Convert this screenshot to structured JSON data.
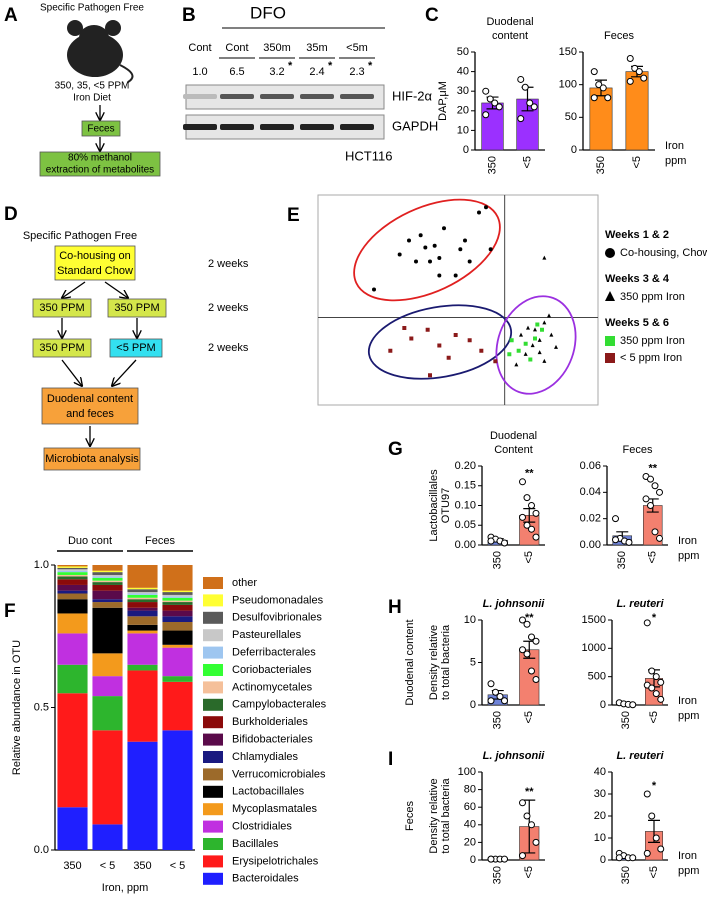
{
  "panel_labels": [
    "A",
    "B",
    "C",
    "D",
    "E",
    "F",
    "G",
    "H",
    "I"
  ],
  "panel_a": {
    "title": "Specific Pathogen Free",
    "diet": [
      "350, 35, <5 PPM",
      "Iron Diet"
    ],
    "step1": "Feces",
    "step2": [
      "80% methanol",
      "extraction of metabolites"
    ]
  },
  "panel_b": {
    "treatment": "DFO",
    "lanes": [
      "Cont",
      "Cont",
      "350m",
      "35m",
      "<5m"
    ],
    "ratios": [
      {
        "value": "1.0"
      },
      {
        "value": "6.5"
      },
      {
        "value": "3.2",
        "mark": "*"
      },
      {
        "value": "2.4",
        "mark": "*"
      },
      {
        "value": "2.3",
        "mark": "*"
      }
    ],
    "bands": [
      "HIF-2α",
      "GAPDH"
    ],
    "cell_line": "HCT116"
  },
  "panel_d": {
    "title": "Specific Pathogen Free",
    "boxes": [
      [
        "Co-housing on",
        "Standard Chow"
      ],
      [
        "350 PPM"
      ],
      [
        "350 PPM"
      ],
      [
        "350 PPM"
      ],
      [
        "<5 PPM"
      ],
      [
        "Duodenal content",
        "and feces"
      ],
      [
        "Microbiota analysis"
      ]
    ],
    "durations": [
      "2 weeks",
      "2 weeks",
      "2 weeks"
    ]
  },
  "chart_data": [
    {
      "type": "bar",
      "title": [
        "Duodenal",
        "content"
      ],
      "y_label": [
        "DAP,μM"
      ],
      "categories": [
        "350",
        "<5"
      ],
      "values": [
        24,
        26
      ],
      "errors": [
        3,
        6
      ],
      "colors": [
        "#9b30ff",
        "#9b30ff"
      ],
      "points": [
        [
          30,
          26,
          24,
          22,
          18
        ],
        [
          36,
          32,
          24,
          22,
          16
        ]
      ],
      "ylim": [
        0,
        50
      ],
      "yticks": [
        0,
        10,
        20,
        30,
        40,
        50
      ]
    },
    {
      "type": "bar",
      "title": [
        "Feces"
      ],
      "x_label": [
        "Iron",
        "ppm"
      ],
      "categories": [
        "350",
        "<5"
      ],
      "values": [
        95,
        120
      ],
      "errors": [
        12,
        8
      ],
      "colors": [
        "#ff8c1a",
        "#ff8c1a"
      ],
      "points": [
        [
          120,
          100,
          95,
          80,
          80
        ],
        [
          140,
          125,
          120,
          110,
          105
        ]
      ],
      "ylim": [
        0,
        150
      ],
      "yticks": [
        0,
        50,
        100,
        150
      ]
    },
    {
      "type": "scatter",
      "xlim": [
        -0.8,
        0.4
      ],
      "ylim": [
        -0.5,
        0.7
      ],
      "series": [
        {
          "name": "Co-housing, Chow",
          "group": "Weeks 1 & 2",
          "marker": "circle",
          "color": "#000000",
          "x": [
            -0.56,
            -0.45,
            -0.41,
            -0.38,
            -0.36,
            -0.34,
            -0.32,
            -0.3,
            -0.28,
            -0.26,
            -0.21,
            -0.19,
            -0.15,
            -0.11,
            -0.08,
            -0.06,
            -0.17,
            -0.28
          ],
          "y": [
            0.16,
            0.36,
            0.44,
            0.32,
            0.47,
            0.4,
            0.32,
            0.41,
            0.34,
            0.51,
            0.24,
            0.39,
            0.32,
            0.6,
            0.63,
            0.39,
            0.44,
            0.24
          ]
        },
        {
          "name": "350 ppm Iron",
          "group": "Weeks 3 & 4",
          "marker": "triangle",
          "color": "#000000",
          "x": [
            0.17,
            0.07,
            0.1,
            0.13,
            0.15,
            0.17,
            0.2,
            0.12,
            0.09,
            0.15,
            0.22,
            0.05,
            0.17,
            0.19
          ],
          "y": [
            0.34,
            -0.1,
            -0.06,
            -0.07,
            -0.13,
            -0.03,
            -0.1,
            -0.16,
            -0.21,
            -0.2,
            -0.17,
            -0.27,
            -0.25,
            0.01
          ]
        },
        {
          "name": "350 ppm Iron",
          "group": "Weeks 5 & 6",
          "marker": "square",
          "color": "#33dd33",
          "x": [
            0.03,
            0.06,
            0.09,
            0.13,
            0.16,
            0.02,
            0.11,
            0.14
          ],
          "y": [
            -0.13,
            -0.19,
            -0.15,
            -0.12,
            -0.07,
            -0.21,
            -0.24,
            -0.04
          ]
        },
        {
          "name": "< 5 ppm Iron",
          "marker": "square",
          "color": "#8b1a1a",
          "x": [
            -0.49,
            -0.43,
            -0.4,
            -0.33,
            -0.28,
            -0.21,
            -0.15,
            -0.24,
            -0.1,
            -0.04,
            -0.32
          ],
          "y": [
            -0.19,
            -0.06,
            -0.12,
            -0.07,
            -0.16,
            -0.1,
            -0.13,
            -0.23,
            -0.19,
            -0.25,
            -0.33
          ]
        }
      ]
    },
    {
      "type": "stacked_bar",
      "y_label": "Relative abundance in OTU",
      "x_label": "Iron, ppm",
      "groups": [
        "Duo cont",
        "Feces"
      ],
      "categories": [
        "350",
        "< 5",
        "350",
        "< 5"
      ],
      "ylim": [
        0,
        1
      ],
      "yticks": [
        {
          "value": 0,
          "label": "0.0"
        },
        {
          "value": 0.5,
          "label": "0.5"
        },
        {
          "value": 1,
          "label": "1.0"
        }
      ],
      "series": [
        {
          "name": "Bacteroidales",
          "color": "#1f1fff",
          "values": [
            0.15,
            0.09,
            0.38,
            0.42
          ]
        },
        {
          "name": "Erysipelotrichales",
          "color": "#ff1a1a",
          "values": [
            0.4,
            0.33,
            0.25,
            0.17
          ]
        },
        {
          "name": "Bacillales",
          "color": "#2db52d",
          "values": [
            0.1,
            0.12,
            0.02,
            0.02
          ]
        },
        {
          "name": "Clostridiales",
          "color": "#c030e0",
          "values": [
            0.11,
            0.07,
            0.11,
            0.1
          ]
        },
        {
          "name": "Mycoplasmatales",
          "color": "#f39a1c",
          "values": [
            0.07,
            0.08,
            0.01,
            0.01
          ]
        },
        {
          "name": "Lactobacillales",
          "color": "#000000",
          "values": [
            0.05,
            0.16,
            0.02,
            0.05
          ]
        },
        {
          "name": "Verrucomicrobiales",
          "color": "#9c6a2a",
          "values": [
            0.02,
            0.02,
            0.03,
            0.03
          ]
        },
        {
          "name": "Chlamydiales",
          "color": "#1a1a80",
          "values": [
            0.01,
            0.01,
            0.02,
            0.02
          ]
        },
        {
          "name": "Bifidobacteriales",
          "color": "#5a0a4a",
          "values": [
            0.02,
            0.03,
            0.01,
            0.02
          ]
        },
        {
          "name": "Burkholderiales",
          "color": "#8b0a0a",
          "values": [
            0.02,
            0.02,
            0.02,
            0.02
          ]
        },
        {
          "name": "Campylobacterales",
          "color": "#2a6a2a",
          "values": [
            0.01,
            0.01,
            0.01,
            0.01
          ]
        },
        {
          "name": "Actinomycetales",
          "color": "#f5c09a",
          "values": [
            0.005,
            0.005,
            0.005,
            0.005
          ]
        },
        {
          "name": "Coriobacteriales",
          "color": "#33ff33",
          "values": [
            0.01,
            0.01,
            0.01,
            0.01
          ]
        },
        {
          "name": "Deferribacterales",
          "color": "#9ec6f0",
          "values": [
            0.005,
            0.005,
            0.005,
            0.005
          ]
        },
        {
          "name": "Pasteurellales",
          "color": "#c8c8c8",
          "values": [
            0.005,
            0.005,
            0.005,
            0.005
          ]
        },
        {
          "name": "Desulfovibrionales",
          "color": "#5a5a5a",
          "values": [
            0.005,
            0.01,
            0.01,
            0.01
          ]
        },
        {
          "name": "Pseudomonadales",
          "color": "#ffff33",
          "values": [
            0.005,
            0.005,
            0.005,
            0.005
          ]
        },
        {
          "name": "other",
          "color": "#d0701a",
          "values": [
            0.005,
            0.02,
            0.08,
            0.09
          ]
        }
      ]
    },
    {
      "type": "bar",
      "title": [
        "Duodenal",
        "Content"
      ],
      "y_label": [
        "Lactobacillales",
        "OTU97"
      ],
      "categories": [
        "350",
        "<5"
      ],
      "values": [
        0.012,
        0.075
      ],
      "errors": [
        0.004,
        0.017
      ],
      "colors": [
        "#6e83d8",
        "#f3806f"
      ],
      "points": [
        [
          0.02,
          0.015,
          0.01,
          0.005,
          0.01
        ],
        [
          0.16,
          0.12,
          0.1,
          0.08,
          0.07,
          0.05,
          0.04,
          0.02
        ]
      ],
      "significance": [
        null,
        "**"
      ],
      "ylim": [
        0,
        0.2
      ],
      "yticks": [
        {
          "value": 0,
          "label": "0.00"
        },
        {
          "value": 0.05,
          "label": "0.05"
        },
        {
          "value": 0.1,
          "label": "0.10"
        },
        {
          "value": 0.15,
          "label": "0.15"
        },
        {
          "value": 0.2,
          "label": "0.20"
        }
      ]
    },
    {
      "type": "bar",
      "title": [
        "Feces"
      ],
      "x_label": [
        "Iron",
        "ppm"
      ],
      "categories": [
        "350",
        "<5"
      ],
      "values": [
        0.007,
        0.03
      ],
      "errors": [
        0.003,
        0.005
      ],
      "colors": [
        "#6e83d8",
        "#f3806f"
      ],
      "points": [
        [
          0.02,
          0.005,
          0.003,
          0.002,
          0.004
        ],
        [
          0.052,
          0.05,
          0.045,
          0.04,
          0.035,
          0.03,
          0.01,
          0.005
        ]
      ],
      "significance": [
        null,
        "**"
      ],
      "ylim": [
        0,
        0.06
      ],
      "yticks": [
        {
          "value": 0,
          "label": "0.00"
        },
        {
          "value": 0.02,
          "label": "0.02"
        },
        {
          "value": 0.04,
          "label": "0.04"
        },
        {
          "value": 0.06,
          "label": "0.06"
        }
      ]
    },
    {
      "type": "bar",
      "title": [
        "L. johnsonii"
      ],
      "group_label": "Duodenal content",
      "y_label": [
        "Density relative",
        "to total bacteria"
      ],
      "categories": [
        "350",
        "<5"
      ],
      "values": [
        1.2,
        6.5
      ],
      "errors": [
        0.5,
        1
      ],
      "colors": [
        "#6e83d8",
        "#f3806f"
      ],
      "points": [
        [
          2.5,
          1.5,
          1,
          0.5,
          0.5
        ],
        [
          10,
          9.5,
          8,
          7.5,
          6.5,
          6,
          4,
          3
        ]
      ],
      "significance": [
        null,
        "**"
      ],
      "ylim": [
        0,
        10
      ],
      "yticks": [
        0,
        5,
        10
      ]
    },
    {
      "type": "bar",
      "title": [
        "L. reuteri"
      ],
      "x_label": [
        "Iron",
        "ppm"
      ],
      "categories": [
        "350",
        "<5"
      ],
      "values": [
        20,
        470
      ],
      "errors": [
        10,
        150
      ],
      "colors": [
        "#6e83d8",
        "#f3806f"
      ],
      "points": [
        [
          40,
          20,
          10,
          5
        ],
        [
          1450,
          600,
          500,
          400,
          350,
          300,
          200,
          100
        ]
      ],
      "significance": [
        null,
        "*"
      ],
      "ylim": [
        0,
        1500
      ],
      "yticks": [
        0,
        500,
        1000,
        1500
      ]
    },
    {
      "type": "bar",
      "title": [
        "L. johnsonii"
      ],
      "group_label": "Feces",
      "y_label": [
        "Density relative",
        "to total bacteria"
      ],
      "categories": [
        "350",
        "<5"
      ],
      "values": [
        1,
        38
      ],
      "errors": [
        0.5,
        30
      ],
      "colors": [
        "#6e83d8",
        "#f3806f"
      ],
      "points": [
        [
          1,
          1,
          1,
          1,
          1
        ],
        [
          65,
          50,
          40,
          20,
          5
        ]
      ],
      "significance": [
        null,
        "**"
      ],
      "ylim": [
        0,
        100
      ],
      "yticks": [
        0,
        20,
        40,
        60,
        80,
        100
      ]
    },
    {
      "type": "bar",
      "title": [
        "L. reuteri"
      ],
      "x_label": [
        "Iron",
        "ppm"
      ],
      "categories": [
        "350",
        "<5"
      ],
      "values": [
        1.5,
        13
      ],
      "errors": [
        0.5,
        5
      ],
      "colors": [
        "#6e83d8",
        "#f3806f"
      ],
      "points": [
        [
          3,
          2,
          1,
          1,
          1
        ],
        [
          30,
          20,
          10,
          5,
          3
        ]
      ],
      "significance": [
        null,
        "*"
      ],
      "ylim": [
        0,
        40
      ],
      "yticks": [
        0,
        10,
        20,
        30,
        40
      ]
    }
  ]
}
